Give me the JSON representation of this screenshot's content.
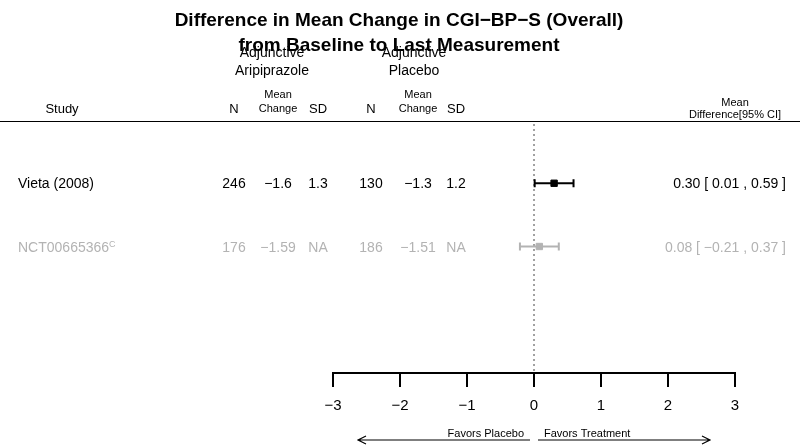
{
  "chart_data": {
    "type": "forest",
    "title": [
      "Difference in Mean Change in CGI−BP−S (Overall)",
      "from Baseline to Last Measurement"
    ],
    "column_groups": [
      [
        "Adjunctive",
        "Aripiprazole"
      ],
      [
        "Adjunctive",
        "Placebo"
      ]
    ],
    "columns": {
      "study": "Study",
      "n": "N",
      "mean_change": [
        "Mean",
        "Change"
      ],
      "sd": "SD",
      "effect": [
        "Mean",
        "Difference[95% CI]"
      ]
    },
    "studies": [
      {
        "name": "Vieta (2008)",
        "treatment": {
          "n": 246,
          "mean_change": "−1.6",
          "sd": "1.3"
        },
        "placebo": {
          "n": 130,
          "mean_change": "−1.3",
          "sd": "1.2"
        },
        "estimate": 0.3,
        "ci": [
          0.01,
          0.59
        ],
        "ci_label": "0.30 [  0.01 ,  0.59 ]",
        "color": "#000000"
      },
      {
        "name": "NCT00665366",
        "note": "C",
        "treatment": {
          "n": 176,
          "mean_change": "−1.59",
          "sd": "NA"
        },
        "placebo": {
          "n": 186,
          "mean_change": "−1.51",
          "sd": "NA"
        },
        "estimate": 0.08,
        "ci": [
          -0.21,
          0.37
        ],
        "ci_label": "0.08 [ −0.21 ,  0.37 ]",
        "color": "#b3b3b3"
      }
    ],
    "xlim": [
      -3,
      3
    ],
    "xticks": [
      {
        "value": -3,
        "label": "−3"
      },
      {
        "value": -2,
        "label": "−2"
      },
      {
        "value": -1,
        "label": "−1"
      },
      0,
      1,
      2,
      3
    ],
    "reference_line": 0,
    "arrows": [
      "Favors Placebo",
      "Favors Treatment"
    ],
    "grid": false
  }
}
